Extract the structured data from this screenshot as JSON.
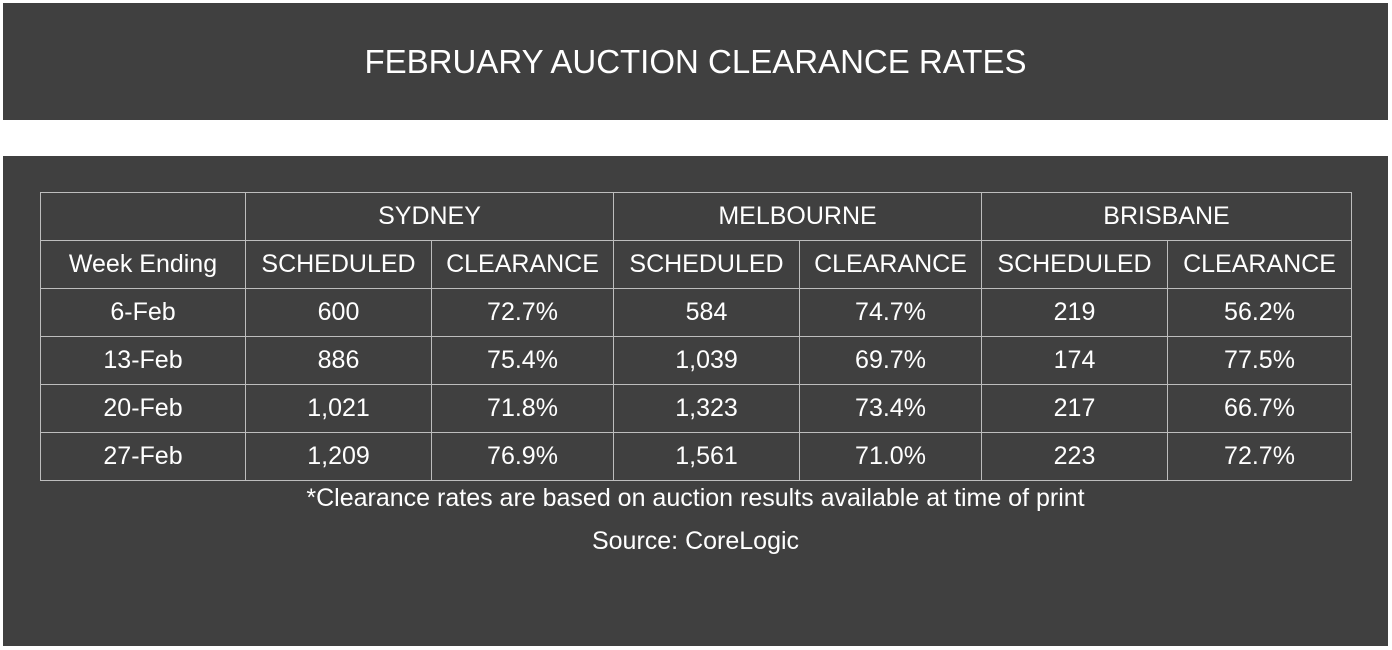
{
  "title": "FEBRUARY AUCTION CLEARANCE RATES",
  "chart_data": {
    "type": "table",
    "title": "FEBRUARY AUCTION CLEARANCE RATES",
    "row_header": "Week Ending",
    "groups": [
      "SYDNEY",
      "MELBOURNE",
      "BRISBANE"
    ],
    "subcolumns": [
      "SCHEDULED",
      "CLEARANCE"
    ],
    "rows": [
      {
        "week": "6-Feb",
        "cells": [
          "600",
          "72.7%",
          "584",
          "74.7%",
          "219",
          "56.2%"
        ]
      },
      {
        "week": "13-Feb",
        "cells": [
          "886",
          "75.4%",
          "1,039",
          "69.7%",
          "174",
          "77.5%"
        ]
      },
      {
        "week": "20-Feb",
        "cells": [
          "1,021",
          "71.8%",
          "1,323",
          "73.4%",
          "217",
          "66.7%"
        ]
      },
      {
        "week": "27-Feb",
        "cells": [
          "1,209",
          "76.9%",
          "1,561",
          "71.0%",
          "223",
          "72.7%"
        ]
      }
    ]
  },
  "footnote": "*Clearance rates are based on auction results available at time of print",
  "source": "Source: CoreLogic",
  "colors": {
    "panel": "#404040",
    "text": "#ffffff",
    "grid": "#bdbdbd"
  }
}
